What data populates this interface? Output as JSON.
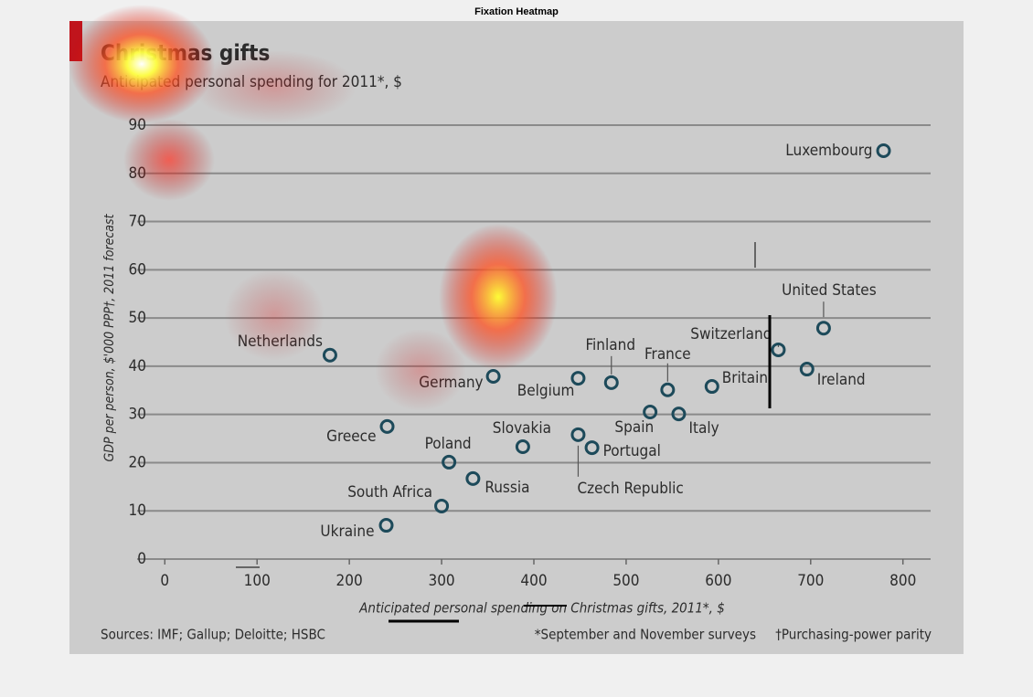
{
  "window_title": "Fixation Heatmap",
  "chart_data": {
    "type": "scatter",
    "title": "Christmas gifts",
    "subtitle": "Anticipated personal spending for 2011*, $",
    "x_label": "Anticipated personal spending on Christmas gifts, 2011*, $",
    "y_label": "GDP per person, $'000 PPP†, 2011 forecast",
    "source": "Sources: IMF; Gallup; Deloitte; HSBC",
    "footnotes": [
      "*September and November surveys",
      "†Purchasing-power parity"
    ],
    "labels": [
      "Luxembourg",
      "United States",
      "Switzerland",
      "Ireland",
      "Britain",
      "France",
      "Finland",
      "Belgium",
      "Germany",
      "Netherlands",
      "Spain",
      "Italy",
      "Greece",
      "Slovakia",
      "Czech Republic",
      "Portugal",
      "Poland",
      "Russia",
      "South Africa",
      "Ukraine"
    ],
    "x": [
      779,
      714,
      665,
      696,
      593,
      545,
      484,
      448,
      356,
      179,
      526,
      557,
      241,
      388,
      448,
      463,
      308,
      334,
      300,
      240
    ],
    "values": [
      84.7,
      47.9,
      43.4,
      39.4,
      35.8,
      35.1,
      36.6,
      37.5,
      37.9,
      42.3,
      30.5,
      30.1,
      27.5,
      23.3,
      25.8,
      23.1,
      20.1,
      16.7,
      11.0,
      7.0
    ],
    "color": "#1d4a5a",
    "xlim": [
      -30,
      830
    ],
    "ylim": [
      0,
      90
    ],
    "xticks": [
      0,
      100,
      200,
      300,
      400,
      500,
      600,
      700,
      800
    ],
    "yticks": [
      0,
      10,
      20,
      30,
      40,
      50,
      60,
      70,
      80,
      90
    ],
    "grid": true
  }
}
